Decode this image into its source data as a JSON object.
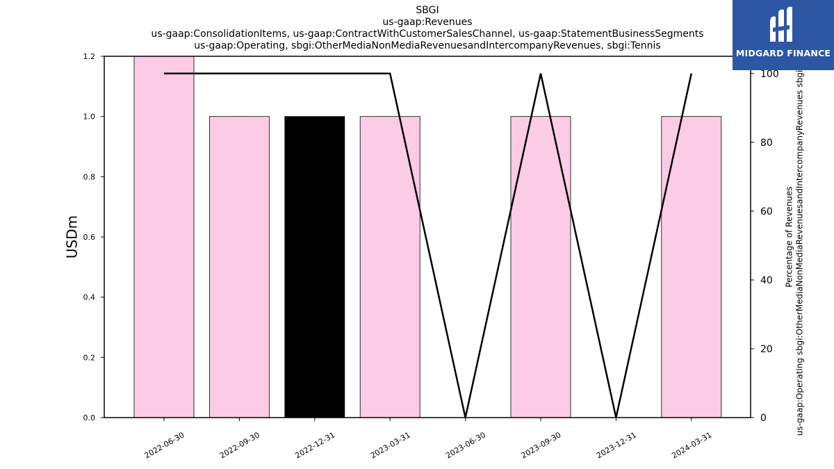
{
  "chart_data": {
    "type": "bar",
    "title_lines": [
      "SBGI",
      "us-gaap:Revenues",
      "us-gaap:ConsolidationItems, us-gaap:ContractWithCustomerSalesChannel, us-gaap:StatementBusinessSegments",
      "us-gaap:Operating, sbgi:OtherMediaNonMediaRevenuesandIntercompanyRevenues, sbgi:Tennis"
    ],
    "categories": [
      "2022-06-30",
      "2022-09-30",
      "2022-12-31",
      "2023-03-31",
      "2023-06-30",
      "2023-09-30",
      "2023-12-31",
      "2024-03-31"
    ],
    "series": [
      {
        "type": "bar",
        "values": [
          1.2,
          1.0,
          1.0,
          1.0,
          0,
          1.0,
          0,
          1.0
        ],
        "colors": [
          "#fccbe5",
          "#fccbe5",
          "#000000",
          "#fccbe5",
          "#fccbe5",
          "#fccbe5",
          "#fccbe5",
          "#fccbe5"
        ],
        "axis": "left"
      },
      {
        "type": "line",
        "values": [
          100,
          100,
          100,
          100,
          0,
          100,
          0,
          100
        ],
        "color": "#000000",
        "axis": "right"
      }
    ],
    "ylabel": "USDm",
    "ylabel_right_lines": [
      "Percentage of Revenues",
      "us-gaap:Operating sbgi:OtherMediaNonMediaRevenuesandIntercompanyRevenues sbgi"
    ],
    "ylim": [
      0,
      1.2
    ],
    "yticks": [
      "0.0",
      "0.2",
      "0.4",
      "0.6",
      "0.8",
      "1.0",
      "1.2"
    ],
    "ylim_right": [
      0,
      105
    ],
    "yticks_right": [
      "0",
      "20",
      "40",
      "60",
      "80",
      "100"
    ],
    "grid": false
  },
  "logo": {
    "text": "MIDGARD FINANCE",
    "background": "#2d56a4"
  }
}
